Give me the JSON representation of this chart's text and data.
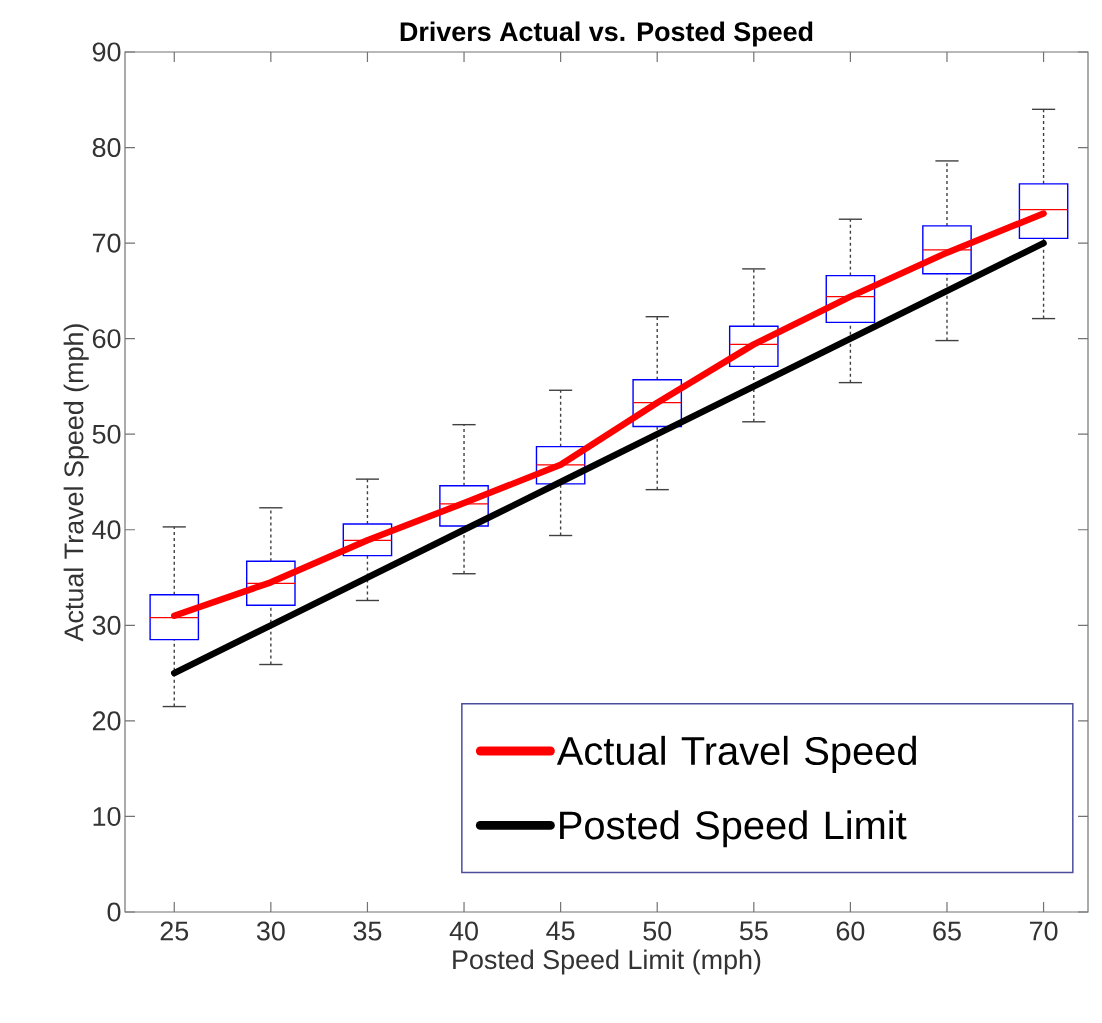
{
  "chart_data": {
    "type": "box",
    "title": "Drivers Actual vs. Posted Speed",
    "xlabel": "Posted Speed Limit (mph)",
    "ylabel": "Actual Travel Speed (mph)",
    "categories": [
      "25",
      "30",
      "35",
      "40",
      "45",
      "50",
      "55",
      "60",
      "65",
      "70"
    ],
    "ylim": [
      0,
      90
    ],
    "yticks": [
      0,
      10,
      20,
      30,
      40,
      50,
      60,
      70,
      80,
      90
    ],
    "legend": "bottom right",
    "grid": false,
    "series": [
      {
        "color": "#0000ff",
        "boxes": [
          {
            "low": 21.5,
            "q1": 28.5,
            "median": 30.8,
            "q3": 33.2,
            "high": 40.3
          },
          {
            "low": 25.9,
            "q1": 32.1,
            "median": 34.4,
            "q3": 36.7,
            "high": 42.3
          },
          {
            "low": 32.6,
            "q1": 37.3,
            "median": 38.9,
            "q3": 40.6,
            "high": 45.3
          },
          {
            "low": 35.4,
            "q1": 40.4,
            "median": 42.7,
            "q3": 44.6,
            "high": 51.0
          },
          {
            "low": 39.4,
            "q1": 44.8,
            "median": 46.8,
            "q3": 48.7,
            "high": 54.6
          },
          {
            "low": 44.2,
            "q1": 50.8,
            "median": 53.3,
            "q3": 55.7,
            "high": 62.3
          },
          {
            "low": 51.3,
            "q1": 57.1,
            "median": 59.4,
            "q3": 61.3,
            "high": 67.3
          },
          {
            "low": 55.4,
            "q1": 61.7,
            "median": 64.4,
            "q3": 66.6,
            "high": 72.5
          },
          {
            "low": 59.8,
            "q1": 66.8,
            "median": 69.3,
            "q3": 71.8,
            "high": 78.6
          },
          {
            "low": 62.1,
            "q1": 70.5,
            "median": 73.5,
            "q3": 76.2,
            "high": 84.0
          }
        ]
      },
      {
        "type": "line",
        "name": "Actual Travel Speed",
        "color": "#ff0000",
        "values": [
          31.0,
          34.5,
          38.9,
          42.8,
          46.8,
          53.3,
          59.4,
          64.4,
          69.0,
          73.1
        ]
      },
      {
        "type": "line",
        "name": "Posted Speed Limit",
        "color": "#000000",
        "values": [
          25,
          30,
          35,
          40,
          45,
          50,
          55,
          60,
          65,
          70
        ]
      }
    ]
  }
}
